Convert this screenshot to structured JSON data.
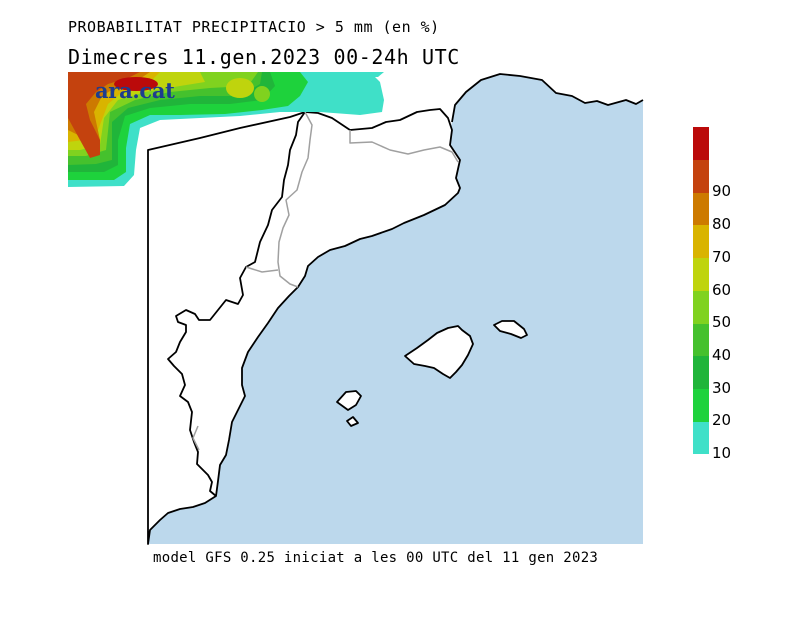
{
  "header": {
    "title": "PROBABILITAT PRECIPITACIO > 5 mm (en %)",
    "subtitle": "Dimecres  11.gen.2023 00-24h UTC"
  },
  "logo": {
    "text": "ara.cat"
  },
  "footer": {
    "text": "model GFS 0.25 iniciat a les 00 UTC del 11 gen 2023"
  },
  "colors": {
    "sea": "#bcd8ec",
    "land": "#ffffff",
    "coast": "#000000",
    "border": "#a0a0a0"
  },
  "legend": {
    "levels": [
      {
        "label": "10",
        "color": "#3fe0c8"
      },
      {
        "label": "20",
        "color": "#1ed23c"
      },
      {
        "label": "30",
        "color": "#20b53a"
      },
      {
        "label": "40",
        "color": "#45c12d"
      },
      {
        "label": "50",
        "color": "#80d21f"
      },
      {
        "label": "60",
        "color": "#bfd40d"
      },
      {
        "label": "70",
        "color": "#d9b400"
      },
      {
        "label": "80",
        "color": "#cd7a00"
      },
      {
        "label": "90",
        "color": "#c4420e"
      },
      {
        "label": "",
        "color": "#bb0a0a"
      }
    ]
  }
}
